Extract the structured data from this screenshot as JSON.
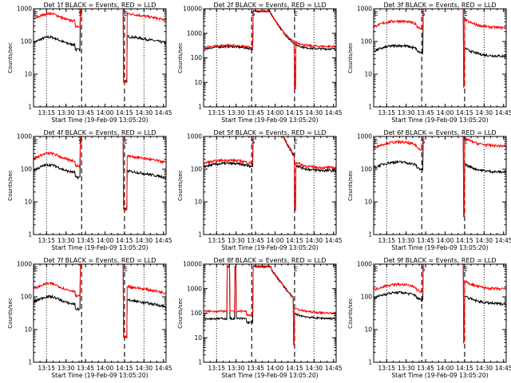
{
  "chart_data": [
    {
      "type": "line",
      "title": "Det 1f BLACK = Events, RED = LLD",
      "xlabel": "Start Time (19-Feb-09 13:05:20)",
      "ylabel": "Counts/sec",
      "yscale": "log",
      "ylim": [
        1,
        1000
      ],
      "xtick_labels": [
        "13:15",
        "13:30",
        "13:45",
        "14:00",
        "14:15",
        "14:30",
        "14:45"
      ],
      "ytick_labels": [
        "1",
        "10",
        "100",
        "1000"
      ],
      "markers": [
        {
          "text": "E",
          "x": "13:07"
        },
        {
          "text": "S",
          "x": "13:41"
        },
        {
          "text": "E",
          "x": "14:16"
        }
      ],
      "series": [
        {
          "name": "Events",
          "color": "#000000",
          "profile": "A",
          "base": 80,
          "post": 90
        },
        {
          "name": "LLD",
          "color": "#ff0000",
          "profile": "A",
          "base": 420,
          "post": 450
        }
      ]
    },
    {
      "type": "line",
      "title": "Det 2f BLACK = Events, RED = LLD",
      "xlabel": "Start Time (19-Feb-09 13:05:20)",
      "ylabel": "Counts/sec",
      "yscale": "log",
      "ylim": [
        1,
        10000
      ],
      "xtick_labels": [
        "13:15",
        "13:30",
        "13:45",
        "14:00",
        "14:15",
        "14:30",
        "14:45"
      ],
      "ytick_labels": [
        "1",
        "10",
        "100",
        "1000",
        "10000"
      ],
      "markers": [
        {
          "text": "S",
          "x": "13:43"
        },
        {
          "text": "E",
          "x": "14:16"
        }
      ],
      "series": [
        {
          "name": "Events",
          "color": "#000000",
          "profile": "B",
          "base": 230,
          "post": 230
        },
        {
          "name": "LLD",
          "color": "#ff0000",
          "profile": "B",
          "base": 260,
          "post": 290
        }
      ]
    },
    {
      "type": "line",
      "title": "Det 3f BLACK = Events, RED = LLD",
      "xlabel": "Start Time (19-Feb-09 13:05:20)",
      "ylabel": "Counts/sec",
      "yscale": "log",
      "ylim": [
        1,
        1000
      ],
      "xtick_labels": [
        "13:15",
        "13:30",
        "13:45",
        "14:00",
        "14:15",
        "14:30",
        "14:45"
      ],
      "ytick_labels": [
        "1",
        "10",
        "100",
        "1000"
      ],
      "markers": [
        {
          "text": "E",
          "x": "13:07"
        },
        {
          "text": "S",
          "x": "13:43"
        },
        {
          "text": "E",
          "x": "14:16"
        }
      ],
      "series": [
        {
          "name": "Events",
          "color": "#000000",
          "profile": "C",
          "base": 50,
          "post": 35
        },
        {
          "name": "LLD",
          "color": "#ff0000",
          "profile": "C",
          "base": 280,
          "post": 260
        }
      ]
    },
    {
      "type": "line",
      "title": "Det 4f BLACK = Events, RED = LLD",
      "xlabel": "Start Time (19-Feb-09 13:05:20)",
      "ylabel": "Counts/sec",
      "yscale": "log",
      "ylim": [
        1,
        1000
      ],
      "xtick_labels": [
        "13:15",
        "13:30",
        "13:45",
        "14:00",
        "14:15",
        "14:30",
        "14:45"
      ],
      "ytick_labels": [
        "1",
        "10",
        "100",
        "1000"
      ],
      "markers": [
        {
          "text": "E",
          "x": "13:07"
        },
        {
          "text": "S",
          "x": "13:41"
        },
        {
          "text": "E",
          "x": "14:16"
        }
      ],
      "series": [
        {
          "name": "Events",
          "color": "#000000",
          "profile": "A",
          "base": 80,
          "post": 55
        },
        {
          "name": "LLD",
          "color": "#ff0000",
          "profile": "A",
          "base": 180,
          "post": 160
        }
      ]
    },
    {
      "type": "line",
      "title": "Det 5f BLACK = Events, RED = LLD",
      "xlabel": "Start Time (19-Feb-09 13:05:20)",
      "ylabel": "Counts/sec",
      "yscale": "log",
      "ylim": [
        1,
        1000
      ],
      "xtick_labels": [
        "13:15",
        "13:30",
        "13:45",
        "14:00",
        "14:15",
        "14:30",
        "14:45"
      ],
      "ytick_labels": [
        "1",
        "10",
        "100",
        "1000"
      ],
      "markers": [
        {
          "text": "S",
          "x": "13:43"
        },
        {
          "text": "E",
          "x": "14:16"
        }
      ],
      "series": [
        {
          "name": "Events",
          "color": "#000000",
          "profile": "B",
          "base": 120,
          "post": 90
        },
        {
          "name": "LLD",
          "color": "#ff0000",
          "profile": "B",
          "base": 150,
          "post": 110
        }
      ]
    },
    {
      "type": "line",
      "title": "Det 6f BLACK = Events, RED = LLD",
      "xlabel": "Start Time (19-Feb-09 13:05:20)",
      "ylabel": "Counts/sec",
      "yscale": "log",
      "ylim": [
        1,
        1000
      ],
      "xtick_labels": [
        "13:15",
        "13:30",
        "13:45",
        "14:00",
        "14:15",
        "14:30",
        "14:45"
      ],
      "ytick_labels": [
        "1",
        "10",
        "100",
        "1000"
      ],
      "markers": [
        {
          "text": "E",
          "x": "13:07"
        },
        {
          "text": "S",
          "x": "13:43"
        },
        {
          "text": "E",
          "x": "14:16"
        }
      ],
      "series": [
        {
          "name": "Events",
          "color": "#000000",
          "profile": "C",
          "base": 110,
          "post": 80
        },
        {
          "name": "LLD",
          "color": "#ff0000",
          "profile": "C",
          "base": 450,
          "post": 500
        }
      ]
    },
    {
      "type": "line",
      "title": "Det 7f BLACK = Events, RED = LLD",
      "xlabel": "Start Time (19-Feb-09 13:05:20)",
      "ylabel": "Counts/sec",
      "yscale": "log",
      "ylim": [
        1,
        1000
      ],
      "xtick_labels": [
        "13:15",
        "13:30",
        "13:45",
        "14:00",
        "14:15",
        "14:30",
        "14:45"
      ],
      "ytick_labels": [
        "1",
        "10",
        "100",
        "1000"
      ],
      "markers": [
        {
          "text": "E",
          "x": "13:07"
        },
        {
          "text": "E",
          "x": "14:16"
        }
      ],
      "series": [
        {
          "name": "Events",
          "color": "#000000",
          "profile": "A",
          "base": 60,
          "post": 50
        },
        {
          "name": "LLD",
          "color": "#ff0000",
          "profile": "A",
          "base": 150,
          "post": 130
        }
      ]
    },
    {
      "type": "line",
      "title": "Det 8f BLACK = Events, RED = LLD",
      "xlabel": "Start Time (19-Feb-09 13:05:20)",
      "ylabel": "Counts/sec",
      "yscale": "log",
      "ylim": [
        1,
        10000
      ],
      "xtick_labels": [
        "13:15",
        "13:30",
        "13:45",
        "14:00",
        "14:15",
        "14:30",
        "14:45"
      ],
      "ytick_labels": [
        "1",
        "10",
        "100",
        "1000",
        "10000"
      ],
      "markers": [
        {
          "text": "E",
          "x": "14:16"
        }
      ],
      "series": [
        {
          "name": "Events",
          "color": "#000000",
          "profile": "D",
          "base": 60,
          "post": 60
        },
        {
          "name": "LLD",
          "color": "#ff0000",
          "profile": "D",
          "base": 120,
          "post": 100
        }
      ]
    },
    {
      "type": "line",
      "title": "Det 9f BLACK = Events, RED = LLD",
      "xlabel": "Start Time (19-Feb-09 13:05:20)",
      "ylabel": "Counts/sec",
      "yscale": "log",
      "ylim": [
        1,
        1000
      ],
      "xtick_labels": [
        "13:15",
        "13:30",
        "13:45",
        "14:00",
        "14:15",
        "14:30",
        "14:45"
      ],
      "ytick_labels": [
        "1",
        "10",
        "100",
        "1000"
      ],
      "markers": [
        {
          "text": "E",
          "x": "13:07"
        },
        {
          "text": "S",
          "x": "13:43"
        },
        {
          "text": "E",
          "x": "14:16"
        }
      ],
      "series": [
        {
          "name": "Events",
          "color": "#000000",
          "profile": "C",
          "base": 90,
          "post": 60
        },
        {
          "name": "LLD",
          "color": "#ff0000",
          "profile": "C",
          "base": 160,
          "post": 170
        }
      ]
    }
  ]
}
